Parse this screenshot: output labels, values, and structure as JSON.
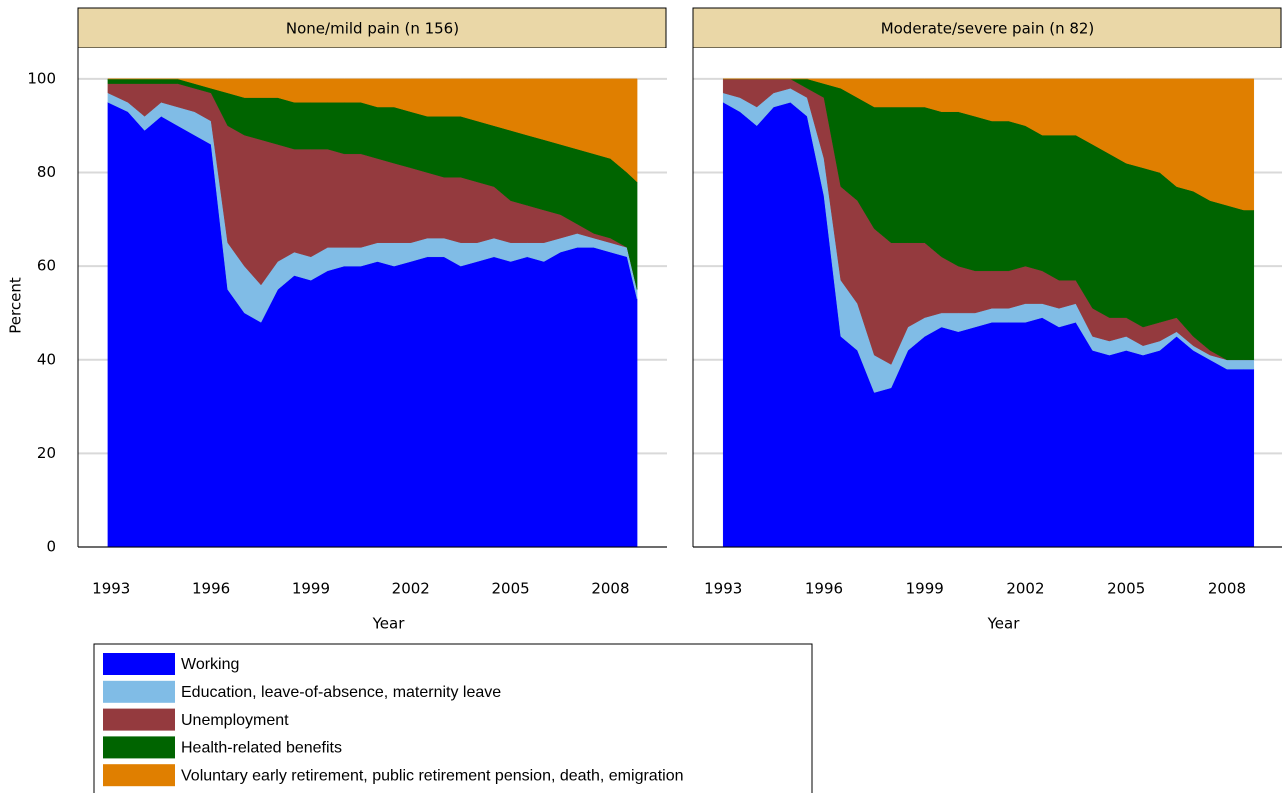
{
  "chart_data": [
    {
      "type": "area",
      "stacked": true,
      "title": "None/mild pain (n 156)",
      "x_label": "Year",
      "y_label": "Percent",
      "show_ytick_labels": true,
      "x": [
        1992.9,
        1993.5,
        1994,
        1994.5,
        1995,
        1995.5,
        1996,
        1996.5,
        1997,
        1997.5,
        1998,
        1998.5,
        1999,
        1999.5,
        2000,
        2000.5,
        2001,
        2001.5,
        2002,
        2002.5,
        2003,
        2003.5,
        2004,
        2004.5,
        2005,
        2005.5,
        2006,
        2006.5,
        2007,
        2007.5,
        2008,
        2008.5,
        2008.8
      ],
      "series": [
        {
          "values": [
            95,
            93,
            89,
            92,
            90,
            88,
            86,
            55,
            50,
            48,
            55,
            58,
            57,
            59,
            60,
            60,
            61,
            60,
            61,
            62,
            62,
            60,
            61,
            62,
            61,
            62,
            61,
            63,
            64,
            64,
            63,
            62,
            53
          ]
        },
        {
          "values": [
            2,
            2,
            3,
            3,
            4,
            5,
            5,
            10,
            10,
            8,
            6,
            5,
            5,
            5,
            4,
            4,
            4,
            5,
            4,
            4,
            4,
            5,
            4,
            4,
            4,
            3,
            4,
            3,
            3,
            2,
            2,
            2,
            2
          ]
        },
        {
          "values": [
            2,
            4,
            7,
            4,
            5,
            5,
            6,
            25,
            28,
            31,
            25,
            22,
            23,
            21,
            20,
            20,
            18,
            17,
            16,
            14,
            13,
            14,
            13,
            11,
            9,
            8,
            7,
            5,
            2,
            1,
            1,
            0,
            0
          ]
        },
        {
          "values": [
            1,
            1,
            1,
            1,
            1,
            1,
            1,
            7,
            8,
            9,
            10,
            10,
            10,
            10,
            11,
            11,
            11,
            12,
            12,
            12,
            13,
            13,
            13,
            13,
            15,
            15,
            15,
            15,
            16,
            17,
            17,
            16,
            23
          ]
        },
        {
          "values": [
            0,
            0,
            0,
            0,
            0,
            1,
            2,
            3,
            4,
            4,
            4,
            5,
            5,
            5,
            5,
            5,
            6,
            6,
            7,
            8,
            8,
            8,
            9,
            10,
            11,
            12,
            13,
            14,
            15,
            16,
            17,
            20,
            22
          ]
        }
      ],
      "xlim": [
        1992,
        2009.7
      ],
      "xticks": [
        1993,
        1996,
        1999,
        2002,
        2005,
        2008
      ],
      "ylim": [
        0,
        106.6
      ],
      "yticks": [
        0,
        20,
        40,
        60,
        80,
        100
      ],
      "grid": true
    },
    {
      "type": "area",
      "stacked": true,
      "title": "Moderate/severe pain (n 82)",
      "x_label": "Year",
      "show_ytick_labels": false,
      "x": [
        1993,
        1993.5,
        1994,
        1994.5,
        1995,
        1995.5,
        1996,
        1996.5,
        1997,
        1997.5,
        1998,
        1998.5,
        1999,
        1999.5,
        2000,
        2000.5,
        2001,
        2001.5,
        2002,
        2002.5,
        2003,
        2003.5,
        2004,
        2004.5,
        2005,
        2005.5,
        2006,
        2006.5,
        2007,
        2007.5,
        2008,
        2008.5,
        2008.8
      ],
      "series": [
        {
          "values": [
            95,
            93,
            90,
            94,
            95,
            92,
            75,
            45,
            42,
            33,
            34,
            42,
            45,
            47,
            46,
            47,
            48,
            48,
            48,
            49,
            47,
            48,
            42,
            41,
            42,
            41,
            42,
            45,
            42,
            40,
            38,
            38,
            38
          ]
        },
        {
          "values": [
            2,
            3,
            4,
            3,
            3,
            4,
            8,
            12,
            10,
            8,
            5,
            5,
            4,
            3,
            4,
            3,
            3,
            3,
            4,
            3,
            4,
            4,
            3,
            3,
            3,
            2,
            2,
            1,
            1,
            1,
            2,
            2,
            2
          ]
        },
        {
          "values": [
            3,
            4,
            6,
            3,
            2,
            2,
            13,
            20,
            22,
            27,
            26,
            18,
            16,
            12,
            10,
            9,
            8,
            8,
            8,
            7,
            6,
            5,
            6,
            5,
            4,
            4,
            4,
            3,
            2,
            1,
            0,
            0,
            0
          ]
        },
        {
          "values": [
            0,
            0,
            0,
            0,
            0,
            2,
            3,
            21,
            22,
            26,
            29,
            29,
            29,
            31,
            33,
            33,
            32,
            32,
            30,
            29,
            31,
            31,
            35,
            35,
            33,
            34,
            32,
            28,
            31,
            32,
            33,
            32,
            32
          ]
        },
        {
          "values": [
            0,
            0,
            0,
            0,
            0,
            0,
            1,
            2,
            4,
            6,
            6,
            6,
            6,
            7,
            7,
            8,
            9,
            9,
            10,
            12,
            12,
            12,
            14,
            16,
            18,
            19,
            20,
            23,
            24,
            26,
            27,
            28,
            28
          ]
        }
      ],
      "xlim": [
        1992.1,
        2009.64
      ],
      "xticks": [
        1993,
        1996,
        1999,
        2002,
        2005,
        2008
      ],
      "ylim": [
        0,
        106.6
      ],
      "yticks": [
        0,
        20,
        40,
        60,
        80,
        100
      ],
      "grid": true
    }
  ],
  "legend": {
    "entries": [
      {
        "label": "Working",
        "color": "#0000ff"
      },
      {
        "label": "Education, leave-of-absence, maternity leave",
        "color": "#80bce6"
      },
      {
        "label": "Unemployment",
        "color": "#943a3e"
      },
      {
        "label": "Health-related benefits",
        "color": "#006400"
      },
      {
        "label": "Voluntary early retirement, public retirement pension, death, emigration",
        "color": "#e07f00"
      }
    ]
  }
}
